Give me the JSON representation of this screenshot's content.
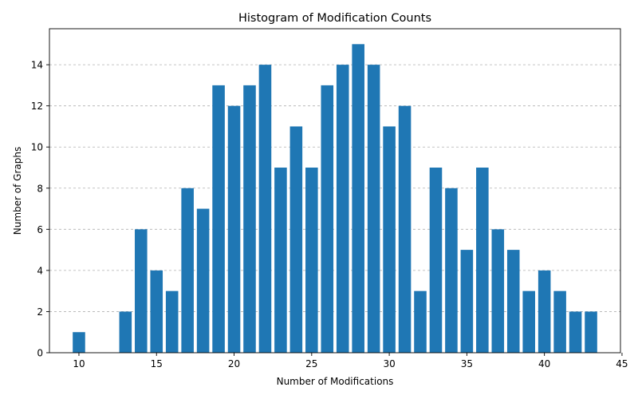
{
  "chart_data": {
    "type": "bar",
    "title": "Histogram of Modification Counts",
    "xlabel": "Number of Modifications",
    "ylabel": "Number of Graphs",
    "x": [
      10,
      13,
      14,
      15,
      16,
      17,
      18,
      19,
      20,
      21,
      22,
      23,
      24,
      25,
      26,
      27,
      28,
      29,
      30,
      31,
      32,
      33,
      34,
      35,
      36,
      37,
      38,
      39,
      40,
      41,
      42,
      43
    ],
    "values": [
      1,
      2,
      6,
      4,
      3,
      8,
      7,
      13,
      12,
      13,
      14,
      9,
      11,
      9,
      13,
      14,
      15,
      14,
      11,
      12,
      3,
      9,
      8,
      5,
      9,
      6,
      5,
      3,
      4,
      3,
      2,
      2
    ],
    "xlim": [
      8.1,
      44.9
    ],
    "ylim": [
      0,
      15.75
    ],
    "xticks": [
      10,
      15,
      20,
      25,
      30,
      35,
      40,
      45
    ],
    "yticks": [
      0,
      2,
      4,
      6,
      8,
      10,
      12,
      14
    ],
    "bar_color": "#1f77b4",
    "grid": "y-dashed"
  }
}
